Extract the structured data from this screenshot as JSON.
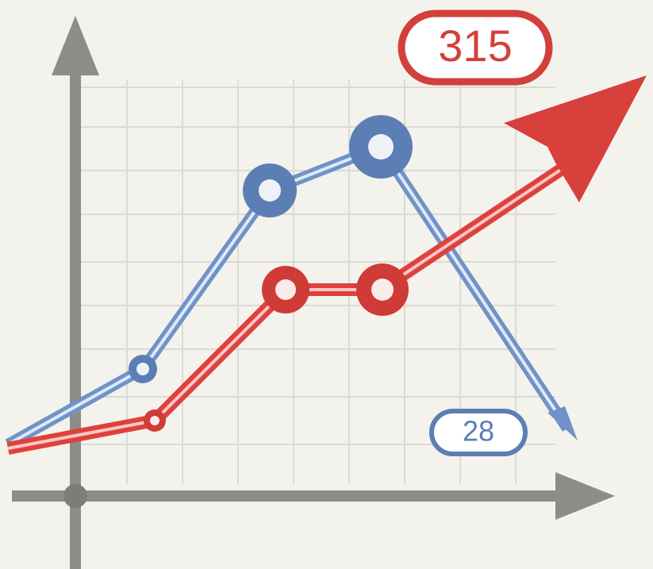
{
  "badges": [
    {
      "text": "315"
    },
    {
      "text": "28"
    }
  ]
}
